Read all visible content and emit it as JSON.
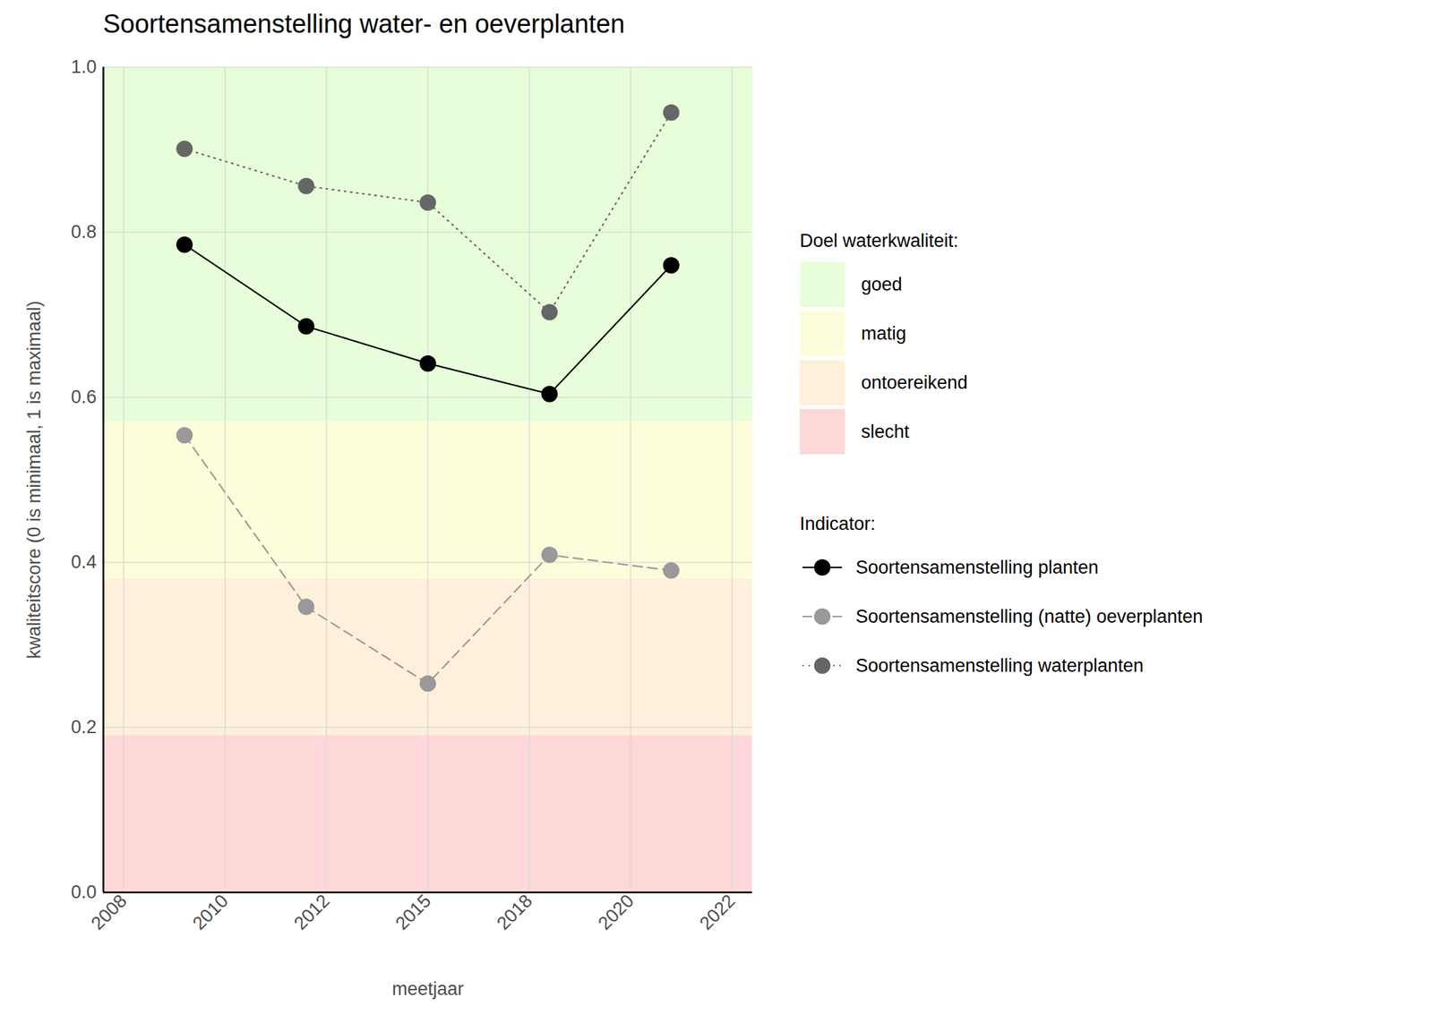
{
  "chart_data": {
    "type": "line",
    "title": "Soortensamenstelling water- en oeverplanten",
    "x_label": "meetjaar",
    "y_label": "kwaliteitscore (0 is minimaal, 1 is maximaal)",
    "x": [
      2009,
      2012,
      2015,
      2018,
      2021
    ],
    "series": [
      {
        "name": "Soortensamenstelling planten",
        "color": "#000000",
        "line_style": "solid",
        "marker": "circle",
        "values": [
          0.785,
          0.686,
          0.641,
          0.604,
          0.76
        ]
      },
      {
        "name": "Soortensamenstelling (natte) oeverplanten",
        "color": "#999999",
        "line_style": "dashed",
        "marker": "circle",
        "values": [
          0.554,
          0.346,
          0.253,
          0.409,
          0.39
        ]
      },
      {
        "name": "Soortensamenstelling waterplanten",
        "color": "#666666",
        "line_style": "dotted",
        "marker": "circle",
        "values": [
          0.901,
          0.856,
          0.836,
          0.703,
          0.945
        ]
      }
    ],
    "legend_title": "Indicator:",
    "bands_title": "Doel waterkwaliteit:",
    "bands": [
      {
        "name": "goed",
        "from": 0.57,
        "to": 1.0,
        "color": "#e8fdd9"
      },
      {
        "name": "matig",
        "from": 0.38,
        "to": 0.57,
        "color": "#fefddb"
      },
      {
        "name": "ontoereikend",
        "from": 0.19,
        "to": 0.38,
        "color": "#fef0da"
      },
      {
        "name": "slecht",
        "from": 0.0,
        "to": 0.19,
        "color": "#fed7d9"
      }
    ],
    "xlim": [
      2007,
      2023
    ],
    "xticks": [
      {
        "value": 2007.5,
        "label": "2008"
      },
      {
        "value": 2010,
        "label": "2010"
      },
      {
        "value": 2012.5,
        "label": "2012"
      },
      {
        "value": 2015,
        "label": "2015"
      },
      {
        "value": 2017.5,
        "label": "2018"
      },
      {
        "value": 2020,
        "label": "2020"
      },
      {
        "value": 2022.5,
        "label": "2022"
      }
    ],
    "ylim": [
      0,
      1
    ],
    "yticks": [
      {
        "value": 0,
        "label": "0.0"
      },
      {
        "value": 0.2,
        "label": "0.2"
      },
      {
        "value": 0.4,
        "label": "0.4"
      },
      {
        "value": 0.6,
        "label": "0.6"
      },
      {
        "value": 0.8,
        "label": "0.8"
      },
      {
        "value": 1,
        "label": "1.0"
      }
    ],
    "grid": true,
    "legend": "right"
  }
}
